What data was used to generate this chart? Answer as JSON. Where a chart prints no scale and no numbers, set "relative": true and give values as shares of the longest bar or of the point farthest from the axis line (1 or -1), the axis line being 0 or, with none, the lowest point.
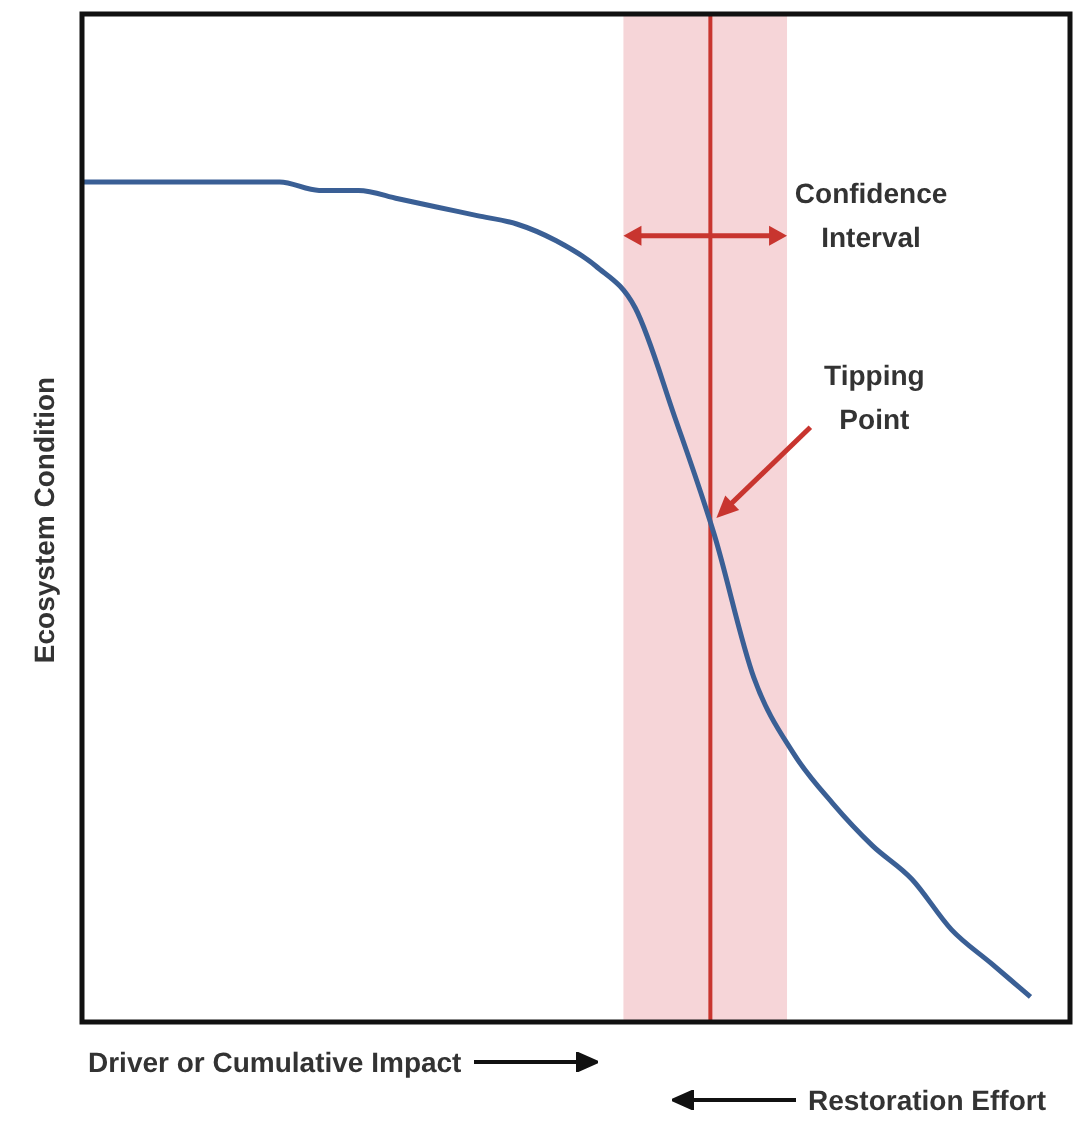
{
  "chart_data": {
    "type": "line",
    "relative": true,
    "ylabel": "Ecosystem Condition",
    "xlabel": "Driver or Cumulative Impact",
    "annotations": [
      "Confidence Interval",
      "Tipping Point",
      "Restoration Effort"
    ],
    "categories": [
      null,
      null,
      null,
      null,
      null,
      null,
      null,
      null,
      null,
      null,
      null,
      null,
      null,
      null,
      null,
      null,
      null,
      null,
      null,
      null,
      null,
      null,
      null,
      null,
      null,
      null
    ],
    "series": [
      {
        "color": "#3a5f95",
        "values": [
          1.0,
          1.0,
          1.0,
          1.0,
          1.0,
          1.0,
          0.99,
          0.99,
          0.98,
          0.97,
          0.96,
          0.95,
          0.93,
          0.9,
          0.85,
          0.72,
          0.58,
          0.41,
          0.32,
          0.26,
          0.21,
          0.17,
          0.11,
          0.07,
          0.03,
          null
        ]
      }
    ],
    "marker": "none",
    "legend": false
  }
}
